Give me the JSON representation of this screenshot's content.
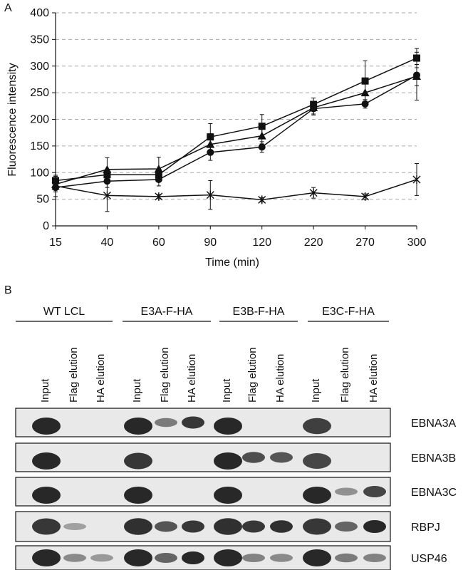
{
  "panel_a": {
    "label": "A",
    "chart_data": {
      "type": "line",
      "title": "",
      "xlabel": "Time (min)",
      "ylabel": "Fluorescence intensity",
      "categories": [
        "15",
        "40",
        "60",
        "90",
        "120",
        "220",
        "270",
        "300"
      ],
      "ylim": [
        0,
        400
      ],
      "yticks": [
        0,
        50,
        100,
        150,
        200,
        250,
        300,
        350,
        400
      ],
      "grid": true,
      "series": [
        {
          "marker": "square",
          "values": [
            85,
            96,
            96,
            167,
            187,
            228,
            272,
            315
          ],
          "errors": [
            8,
            8,
            8,
            25,
            22,
            12,
            38,
            18
          ]
        },
        {
          "marker": "triangle",
          "values": [
            78,
            106,
            107,
            153,
            169,
            222,
            250,
            281
          ],
          "errors": [
            8,
            22,
            22,
            20,
            15,
            12,
            18,
            45
          ]
        },
        {
          "marker": "circle",
          "values": [
            72,
            84,
            87,
            138,
            148,
            220,
            229,
            283
          ],
          "errors": [
            8,
            12,
            12,
            15,
            10,
            12,
            8,
            20
          ]
        },
        {
          "marker": "star",
          "values": [
            75,
            57,
            55,
            58,
            49,
            62,
            55,
            87
          ],
          "errors": [
            20,
            30,
            4,
            27,
            4,
            10,
            5,
            30
          ]
        }
      ]
    }
  },
  "panel_b": {
    "label": "B",
    "groups": [
      "WT LCL",
      "E3A-F-HA",
      "E3B-F-HA",
      "E3C-F-HA"
    ],
    "lanes": [
      "Input",
      "Flag elution",
      "HA elution"
    ],
    "blots": [
      "EBNA3A",
      "EBNA3B",
      "EBNA3C",
      "RBPJ",
      "USP46"
    ]
  }
}
